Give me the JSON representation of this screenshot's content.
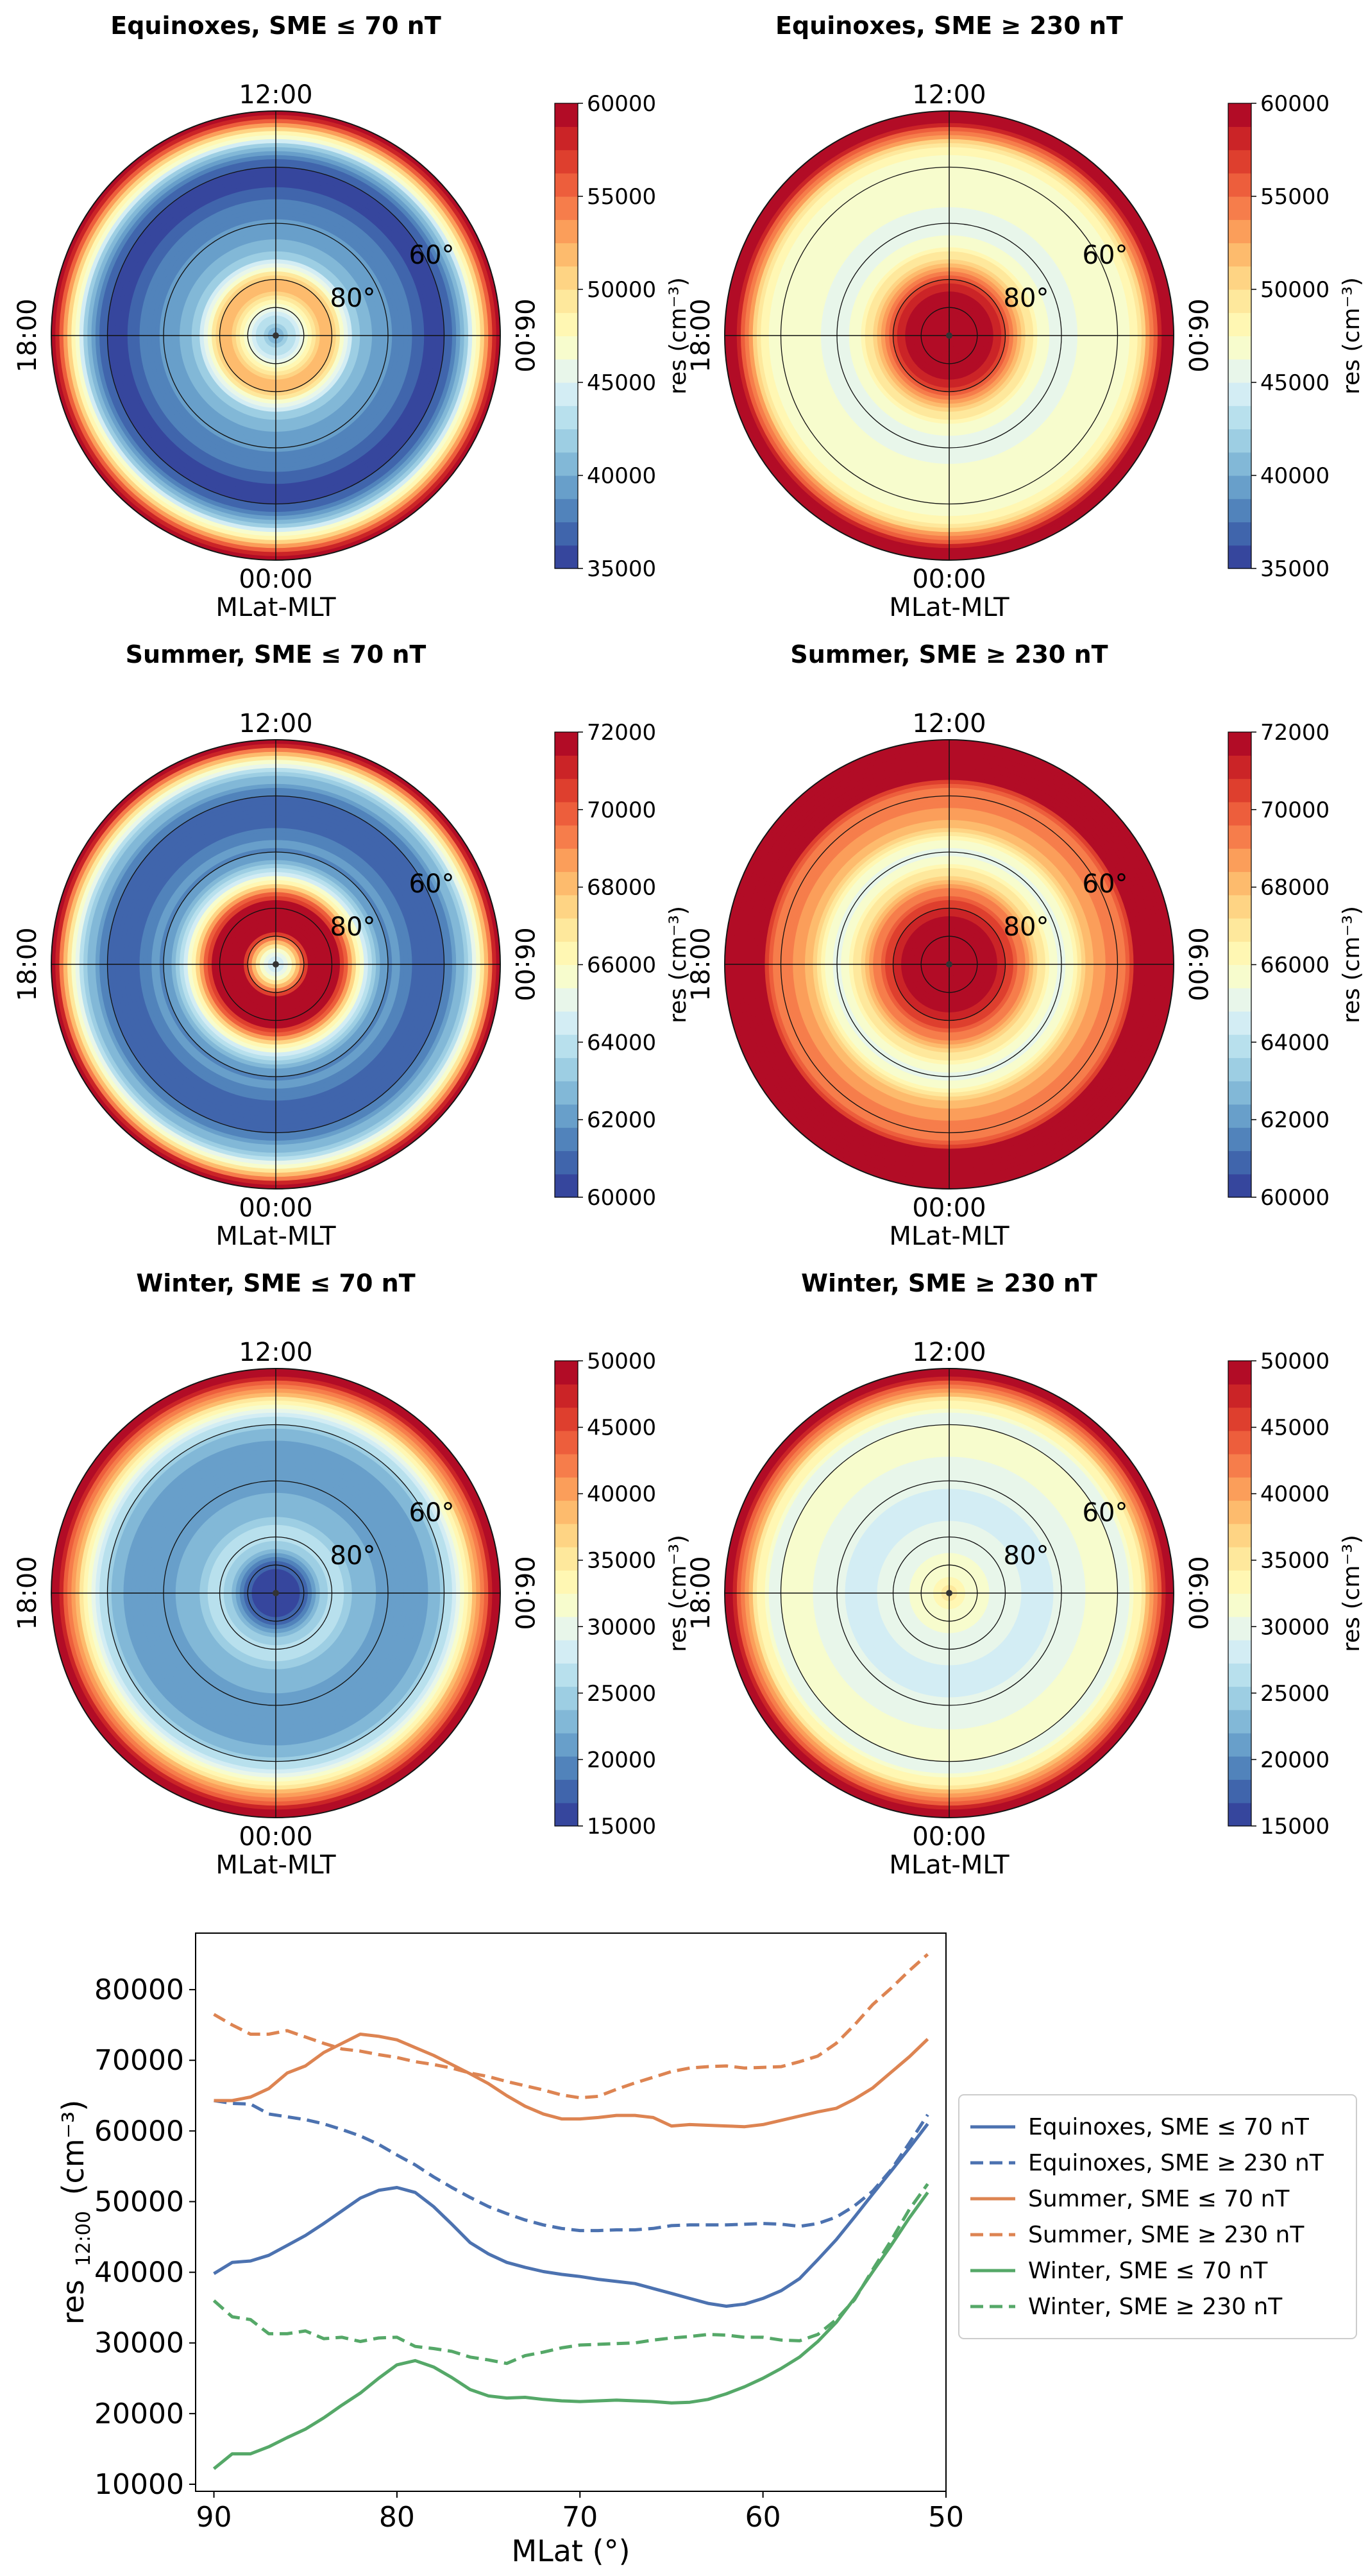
{
  "chart_data": [
    {
      "type": "polar-heatmap",
      "title": "Equinoxes, SME ≤ 70 nT",
      "clock_labels": {
        "top": "12:00",
        "bottom": "00:00",
        "left": "18:00",
        "right": "06:00"
      },
      "axis_label": "MLat-MLT",
      "lat_labels": [
        "60°",
        "80°"
      ],
      "colorbar": {
        "min": 35000,
        "max": 60000,
        "ticks": [
          35000,
          40000,
          45000,
          50000,
          55000,
          60000
        ],
        "label": "res (cm⁻³)"
      },
      "radial_profile": {
        "mlat": [
          90,
          88,
          86,
          84,
          82,
          80,
          78,
          76,
          74,
          72,
          70,
          68,
          66,
          64,
          62,
          60,
          58,
          56,
          54,
          52,
          50
        ],
        "res": [
          40000,
          41800,
          44800,
          48500,
          51600,
          51200,
          47000,
          42100,
          40400,
          39800,
          39000,
          38400,
          37600,
          36600,
          35500,
          36300,
          38200,
          42500,
          48500,
          55000,
          62000
        ]
      }
    },
    {
      "type": "polar-heatmap",
      "title": "Equinoxes, SME ≥ 230 nT",
      "clock_labels": {
        "top": "12:00",
        "bottom": "00:00",
        "left": "18:00",
        "right": "06:00"
      },
      "axis_label": "MLat-MLT",
      "lat_labels": [
        "60°",
        "80°"
      ],
      "colorbar": {
        "min": 35000,
        "max": 60000,
        "ticks": [
          35000,
          40000,
          45000,
          50000,
          55000,
          60000
        ],
        "label": "res (cm⁻³)"
      },
      "radial_profile": {
        "mlat": [
          90,
          88,
          86,
          84,
          82,
          80,
          78,
          76,
          74,
          72,
          70,
          68,
          66,
          64,
          62,
          60,
          58,
          56,
          54,
          52,
          50
        ],
        "res": [
          64000,
          63400,
          62400,
          61000,
          59000,
          56500,
          53000,
          49500,
          47200,
          46200,
          45900,
          46100,
          46400,
          46500,
          46600,
          46700,
          47200,
          49500,
          54000,
          59500,
          65000
        ]
      }
    },
    {
      "type": "polar-heatmap",
      "title": "Summer, SME ≤ 70 nT",
      "clock_labels": {
        "top": "12:00",
        "bottom": "00:00",
        "left": "18:00",
        "right": "06:00"
      },
      "axis_label": "MLat-MLT",
      "lat_labels": [
        "60°",
        "80°"
      ],
      "colorbar": {
        "min": 60000,
        "max": 72000,
        "ticks": [
          60000,
          62000,
          64000,
          66000,
          68000,
          70000,
          72000
        ],
        "label": "res (cm⁻³)"
      },
      "radial_profile": {
        "mlat": [
          90,
          88,
          86,
          84,
          82,
          80,
          78,
          76,
          74,
          72,
          70,
          68,
          66,
          64,
          62,
          60,
          58,
          56,
          54,
          52,
          50
        ],
        "res": [
          64500,
          65000,
          68500,
          71500,
          73500,
          72500,
          70500,
          67500,
          64500,
          62500,
          61700,
          61900,
          61300,
          60900,
          60700,
          61100,
          62100,
          63400,
          65500,
          69000,
          74000
        ]
      }
    },
    {
      "type": "polar-heatmap",
      "title": "Summer, SME ≥ 230 nT",
      "clock_labels": {
        "top": "12:00",
        "bottom": "00:00",
        "left": "18:00",
        "right": "06:00"
      },
      "axis_label": "MLat-MLT",
      "lat_labels": [
        "60°",
        "80°"
      ],
      "colorbar": {
        "min": 60000,
        "max": 72000,
        "ticks": [
          60000,
          62000,
          64000,
          66000,
          68000,
          70000,
          72000
        ],
        "label": "res (cm⁻³)"
      },
      "radial_profile": {
        "mlat": [
          90,
          88,
          86,
          84,
          82,
          80,
          78,
          76,
          74,
          72,
          70,
          68,
          66,
          64,
          62,
          60,
          58,
          56,
          54,
          52,
          50
        ],
        "res": [
          76500,
          74000,
          74200,
          73000,
          71500,
          70800,
          69800,
          68500,
          67200,
          65800,
          65000,
          65800,
          67500,
          68500,
          69000,
          69100,
          70000,
          73000,
          77000,
          81000,
          85000
        ]
      }
    },
    {
      "type": "polar-heatmap",
      "title": "Winter, SME ≤ 70 nT",
      "clock_labels": {
        "top": "12:00",
        "bottom": "00:00",
        "left": "18:00",
        "right": "06:00"
      },
      "axis_label": "MLat-MLT",
      "lat_labels": [
        "60°",
        "80°"
      ],
      "colorbar": {
        "min": 15000,
        "max": 50000,
        "ticks": [
          15000,
          20000,
          25000,
          30000,
          35000,
          40000,
          45000,
          50000
        ],
        "label": "res (cm⁻³)"
      },
      "radial_profile": {
        "mlat": [
          90,
          88,
          86,
          84,
          82,
          80,
          78,
          76,
          74,
          72,
          70,
          68,
          66,
          64,
          62,
          60,
          58,
          56,
          54,
          52,
          50
        ],
        "res": [
          12000,
          14300,
          16500,
          19000,
          23500,
          27000,
          25500,
          23000,
          22400,
          22000,
          21800,
          21900,
          21700,
          21600,
          22500,
          25000,
          28500,
          33500,
          40000,
          46000,
          53000
        ]
      }
    },
    {
      "type": "polar-heatmap",
      "title": "Winter, SME ≥ 230 nT",
      "clock_labels": {
        "top": "12:00",
        "bottom": "00:00",
        "left": "18:00",
        "right": "06:00"
      },
      "axis_label": "MLat-MLT",
      "lat_labels": [
        "60°",
        "80°"
      ],
      "colorbar": {
        "min": 15000,
        "max": 50000,
        "ticks": [
          15000,
          20000,
          25000,
          30000,
          35000,
          40000,
          45000,
          50000
        ],
        "label": "res (cm⁻³)"
      },
      "radial_profile": {
        "mlat": [
          90,
          88,
          86,
          84,
          82,
          80,
          78,
          76,
          74,
          72,
          70,
          68,
          66,
          64,
          62,
          60,
          58,
          56,
          54,
          52,
          50
        ],
        "res": [
          36000,
          33500,
          31500,
          31000,
          30500,
          30800,
          29500,
          28200,
          27200,
          28800,
          29600,
          30000,
          30600,
          31100,
          31000,
          30700,
          30500,
          34000,
          40000,
          46000,
          53000
        ]
      }
    },
    {
      "type": "line",
      "xlabel": "MLat (°)",
      "ylabel_main": "res",
      "ylabel_sub": "12:00",
      "ylabel_unit": "(cm⁻³)",
      "xlim": [
        91,
        50
      ],
      "ylim": [
        9000,
        88000
      ],
      "xticks": [
        90,
        80,
        70,
        60,
        50
      ],
      "yticks": [
        10000,
        20000,
        30000,
        40000,
        50000,
        60000,
        70000,
        80000
      ],
      "x": [
        90,
        89,
        88,
        87,
        86,
        85,
        84,
        83,
        82,
        81,
        80,
        79,
        78,
        77,
        76,
        75,
        74,
        73,
        72,
        71,
        70,
        69,
        68,
        67,
        66,
        65,
        64,
        63,
        62,
        61,
        60,
        59,
        58,
        57,
        56,
        55,
        54,
        53,
        52,
        51
      ],
      "series": [
        {
          "name": "Equinoxes, SME  ≤ 70 nT",
          "color": "#4c72b0",
          "dash": "solid",
          "values": [
            39800,
            41400,
            41600,
            42400,
            43800,
            45200,
            46900,
            48700,
            50500,
            51600,
            52000,
            51300,
            49300,
            46800,
            44200,
            42600,
            41400,
            40700,
            40100,
            39700,
            39400,
            39000,
            38700,
            38400,
            37700,
            37000,
            36300,
            35600,
            35200,
            35500,
            36300,
            37400,
            39100,
            41800,
            44600,
            47800,
            51100,
            54300,
            57600,
            61000
          ]
        },
        {
          "name": "Equinoxes, SME  ≥ 230 nT",
          "color": "#4c72b0",
          "dash": "dashed",
          "values": [
            64300,
            63900,
            63800,
            62400,
            62000,
            61600,
            61000,
            60200,
            59300,
            58100,
            56600,
            55200,
            53500,
            52000,
            50600,
            49300,
            48300,
            47400,
            46700,
            46200,
            45900,
            45900,
            46000,
            46000,
            46200,
            46600,
            46700,
            46700,
            46700,
            46800,
            46900,
            46800,
            46500,
            46900,
            47800,
            49400,
            51500,
            54500,
            58300,
            62300
          ]
        },
        {
          "name": "Summer, SME  ≤ 70 nT",
          "color": "#dd8452",
          "dash": "solid",
          "values": [
            64300,
            64300,
            64800,
            66000,
            68200,
            69200,
            71100,
            72400,
            73700,
            73400,
            72900,
            71800,
            70700,
            69400,
            68100,
            66700,
            65000,
            63500,
            62400,
            61700,
            61700,
            61900,
            62200,
            62200,
            61900,
            60700,
            60900,
            60800,
            60700,
            60600,
            60900,
            61500,
            62100,
            62700,
            63200,
            64500,
            66100,
            68300,
            70500,
            73000
          ]
        },
        {
          "name": "Summer, SME  ≥ 230 nT",
          "color": "#dd8452",
          "dash": "dashed",
          "values": [
            76500,
            75000,
            73700,
            73700,
            74200,
            73300,
            72400,
            71600,
            71300,
            70800,
            70400,
            69800,
            69400,
            68900,
            68200,
            67700,
            67000,
            66400,
            65800,
            65100,
            64700,
            64900,
            65900,
            66800,
            67600,
            68400,
            68900,
            69100,
            69200,
            68900,
            69000,
            69100,
            69800,
            70600,
            72400,
            75000,
            77900,
            80200,
            82700,
            85000
          ]
        },
        {
          "name": "Winter, SME  ≤ 70 nT",
          "color": "#55a868",
          "dash": "solid",
          "values": [
            12200,
            14300,
            14300,
            15300,
            16600,
            17800,
            19400,
            21200,
            22900,
            25000,
            26900,
            27500,
            26600,
            25100,
            23400,
            22500,
            22200,
            22300,
            22000,
            21800,
            21700,
            21800,
            21900,
            21800,
            21700,
            21500,
            21600,
            22000,
            22800,
            23800,
            25000,
            26400,
            28000,
            30200,
            32900,
            36300,
            40100,
            43800,
            47700,
            51300
          ]
        },
        {
          "name": "Winter, SME  ≥ 230 nT",
          "color": "#55a868",
          "dash": "dashed",
          "values": [
            36000,
            33700,
            33300,
            31300,
            31300,
            31700,
            30600,
            30800,
            30200,
            30700,
            30800,
            29500,
            29200,
            28800,
            28000,
            27600,
            27100,
            28200,
            28700,
            29300,
            29700,
            29800,
            29900,
            30000,
            30400,
            30700,
            30900,
            31200,
            31100,
            30800,
            30800,
            30400,
            30300,
            31200,
            33300,
            36100,
            40400,
            44500,
            48900,
            52500
          ]
        }
      ]
    }
  ]
}
